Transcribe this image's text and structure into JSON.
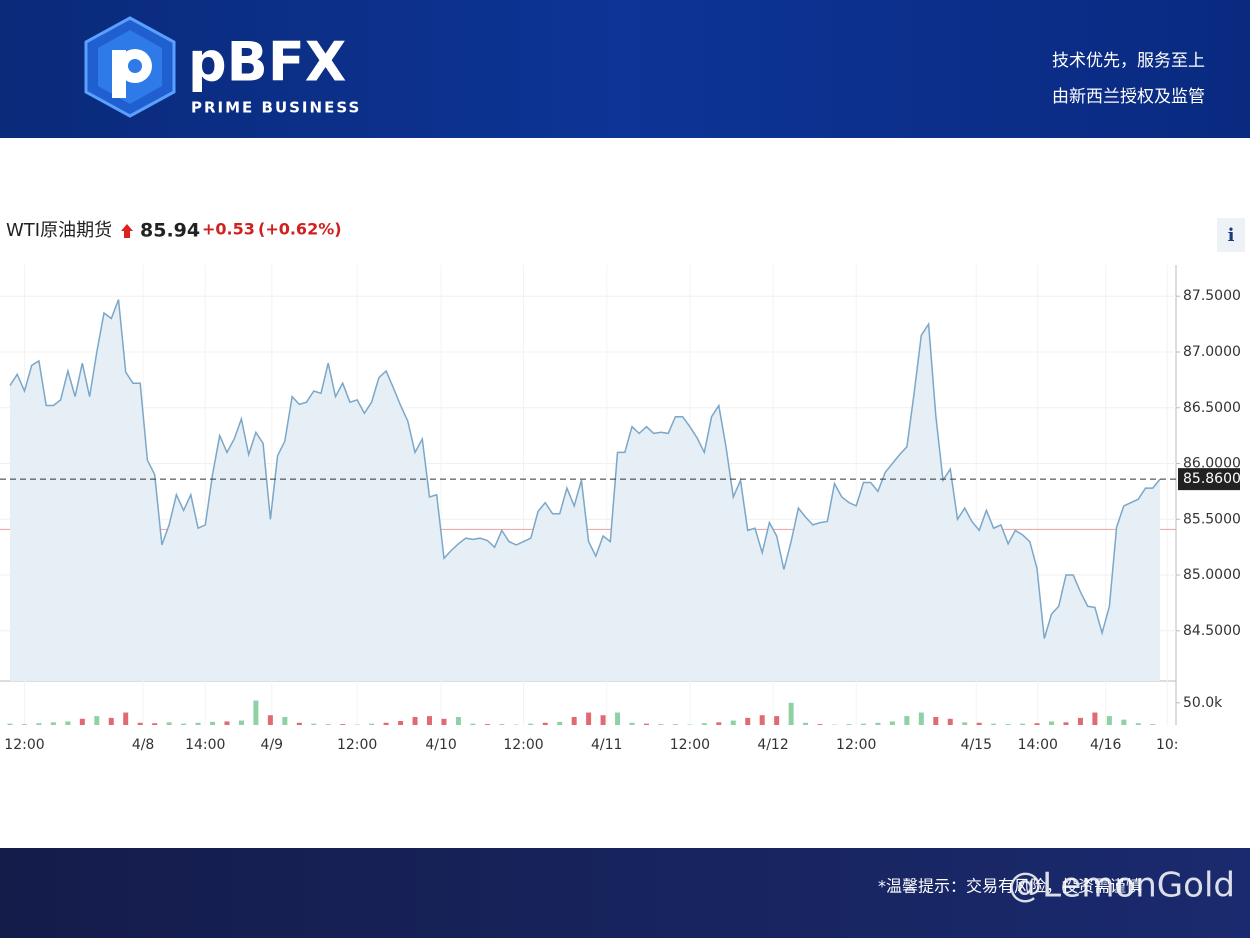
{
  "header": {
    "brand": "pBFX",
    "brand_sub": "PRIME BUSINESS",
    "slogan": "技术优先，服务至上",
    "license": "由新西兰授权及监管"
  },
  "quote": {
    "name": "WTI原油期货",
    "price": "85.94",
    "change": "+0.53",
    "change_pct": "(+0.62%)",
    "info": "i"
  },
  "chart_data": {
    "type": "line",
    "color": "#7ba7c8",
    "fill": "#e6eef6",
    "series": [
      {
        "values": [
          86.7,
          86.8,
          86.65,
          86.88,
          86.92,
          86.52,
          86.52,
          86.57,
          86.83,
          86.6,
          86.9,
          86.6,
          87.0,
          87.35,
          87.3,
          87.47,
          86.82,
          86.72,
          86.72,
          86.03,
          85.9,
          85.27,
          85.45,
          85.72,
          85.58,
          85.72,
          85.42,
          85.45,
          85.9,
          86.25,
          86.1,
          86.22,
          86.4,
          86.08,
          86.28,
          86.18,
          85.5,
          86.07,
          86.2,
          86.6,
          86.53,
          86.55,
          86.65,
          86.63,
          86.9,
          86.6,
          86.72,
          86.55,
          86.57,
          86.45,
          86.55,
          86.77,
          86.83,
          86.68,
          86.52,
          86.38,
          86.1,
          86.22,
          85.7,
          85.72,
          85.15,
          85.22,
          85.28,
          85.33,
          85.32,
          85.33,
          85.31,
          85.25,
          85.4,
          85.3,
          85.27,
          85.3,
          85.33,
          85.57,
          85.65,
          85.55,
          85.55,
          85.78,
          85.62,
          85.85,
          85.3,
          85.17,
          85.35,
          85.3,
          86.1,
          86.1,
          86.33,
          86.27,
          86.33,
          86.27,
          86.28,
          86.27,
          86.42,
          86.42,
          86.33,
          86.23,
          86.1,
          86.42,
          86.52,
          86.15,
          85.7,
          85.85,
          85.4,
          85.42,
          85.2,
          85.47,
          85.35,
          85.05,
          85.3,
          85.6,
          85.52,
          85.45,
          85.47,
          85.48,
          85.82,
          85.7,
          85.65,
          85.62,
          85.83,
          85.83,
          85.75,
          85.92,
          86.0,
          86.08,
          86.15,
          86.63,
          87.15,
          87.25,
          86.43,
          85.85,
          85.95,
          85.5,
          85.6,
          85.48,
          85.4,
          85.58,
          85.42,
          85.45,
          85.28,
          85.4,
          85.36,
          85.3,
          85.06,
          84.43,
          84.65,
          84.72,
          85.0,
          85.0,
          84.85,
          84.72,
          84.71,
          84.48,
          84.72,
          85.43,
          85.62,
          85.65,
          85.68,
          85.78,
          85.78,
          85.86
        ]
      }
    ],
    "xlim": [
      0,
      159
    ],
    "xticks": [
      {
        "value": 2,
        "label": "12:00"
      },
      {
        "value": 18.4,
        "label": "4/8"
      },
      {
        "value": 27,
        "label": "14:00"
      },
      {
        "value": 36.2,
        "label": "4/9"
      },
      {
        "value": 48,
        "label": "12:00"
      },
      {
        "value": 59.6,
        "label": "4/10"
      },
      {
        "value": 71,
        "label": "12:00"
      },
      {
        "value": 82.5,
        "label": "4/11"
      },
      {
        "value": 94,
        "label": "12:00"
      },
      {
        "value": 105.5,
        "label": "4/12"
      },
      {
        "value": 117,
        "label": "12:00"
      },
      {
        "value": 133.6,
        "label": "4/15"
      },
      {
        "value": 142.1,
        "label": "14:00"
      },
      {
        "value": 151.5,
        "label": "4/16"
      },
      {
        "value": 160,
        "label": "10:"
      }
    ],
    "ylim": [
      84.05,
      87.78
    ],
    "yticks": [
      {
        "value": 84.5,
        "label": "84.5000"
      },
      {
        "value": 85,
        "label": "85.0000"
      },
      {
        "value": 85.5,
        "label": "85.5000"
      },
      {
        "value": 86,
        "label": "86.0000"
      },
      {
        "value": 86.5,
        "label": "86.5000"
      },
      {
        "value": 87,
        "label": "87.0000"
      },
      {
        "value": 87.5,
        "label": "87.5000"
      }
    ],
    "grid": true,
    "current_line": {
      "value": 85.86,
      "label": "85.8600"
    },
    "reference_line": 85.41,
    "volume": {
      "up_color": "#8fd0a5",
      "down_color": "#e06a72",
      "ylim": [
        0,
        90000
      ],
      "yticks": [
        {
          "value": 50000,
          "label": "50.0k"
        }
      ],
      "x": [
        0,
        2,
        4,
        6,
        8,
        10,
        12,
        14,
        16,
        18,
        20,
        22,
        24,
        26,
        28,
        30,
        32,
        34,
        36,
        38,
        40,
        42,
        44,
        46,
        48,
        50,
        52,
        54,
        56,
        58,
        60,
        62,
        64,
        66,
        68,
        70,
        72,
        74,
        76,
        78,
        80,
        82,
        84,
        86,
        88,
        90,
        92,
        94,
        96,
        98,
        100,
        102,
        104,
        106,
        108,
        110,
        112,
        114,
        116,
        118,
        120,
        122,
        124,
        126,
        128,
        130,
        132,
        134,
        136,
        138,
        140,
        142,
        144,
        146,
        148,
        150,
        152,
        154,
        156,
        158
      ],
      "values": [
        3000,
        2000,
        4000,
        6000,
        8000,
        14000,
        20000,
        16000,
        28000,
        5000,
        4000,
        6000,
        3000,
        5000,
        7000,
        8000,
        10000,
        55000,
        22000,
        18000,
        5000,
        3000,
        2000,
        2000,
        1000,
        3000,
        5000,
        9000,
        18000,
        20000,
        14000,
        18000,
        3000,
        2000,
        2000,
        1000,
        3000,
        5000,
        7000,
        18000,
        28000,
        22000,
        28000,
        5000,
        3000,
        2000,
        2000,
        1000,
        4000,
        6000,
        10000,
        16000,
        22000,
        20000,
        50000,
        5000,
        2000,
        1000,
        2000,
        3000,
        5000,
        8000,
        20000,
        28000,
        18000,
        14000,
        6000,
        5000,
        3000,
        2000,
        3000,
        4000,
        8000,
        6000,
        16000,
        28000,
        20000,
        12000,
        4000,
        2000
      ],
      "up": [
        true,
        true,
        true,
        true,
        true,
        false,
        true,
        false,
        false,
        false,
        false,
        true,
        true,
        true,
        true,
        false,
        true,
        true,
        false,
        true,
        false,
        true,
        true,
        false,
        true,
        true,
        false,
        false,
        false,
        false,
        false,
        true,
        true,
        false,
        true,
        true,
        true,
        false,
        true,
        false,
        false,
        false,
        true,
        true,
        false,
        true,
        true,
        true,
        true,
        false,
        true,
        false,
        false,
        false,
        true,
        true,
        false,
        true,
        true,
        true,
        true,
        true,
        true,
        true,
        false,
        false,
        true,
        false,
        true,
        true,
        true,
        false,
        true,
        false,
        false,
        false,
        true,
        true,
        true,
        true
      ]
    }
  },
  "footer": {
    "notice": "*温馨提示：交易有风险，投资需谨慎",
    "watermark": "@LemonGold"
  }
}
